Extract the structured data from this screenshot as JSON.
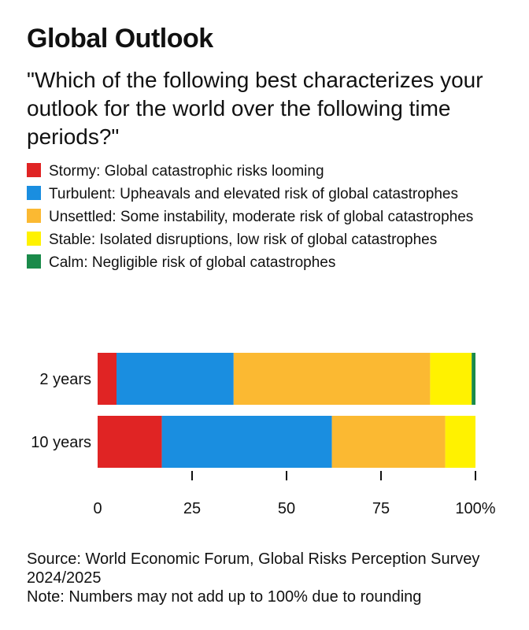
{
  "header": {
    "title": "Global Outlook",
    "subtitle": "\"Which of the following best characterizes your outlook for the world over the following time periods?\""
  },
  "legend": [
    {
      "label": "Stormy: Global catastrophic risks looming",
      "color": "#e02424"
    },
    {
      "label": "Turbulent: Upheavals and elevated risk of global catastrophes",
      "color": "#1a8ee0"
    },
    {
      "label": "Unsettled: Some instability, moderate risk of global catastrophes",
      "color": "#fbb932"
    },
    {
      "label": "Stable: Isolated disruptions, low risk of global catastrophes",
      "color": "#fff200"
    },
    {
      "label": "Calm: Negligible risk of global catastrophes",
      "color": "#1a8a4a"
    }
  ],
  "chart_data": {
    "type": "bar",
    "orientation": "horizontal",
    "stacked": true,
    "categories": [
      "2 years",
      "10 years"
    ],
    "series": [
      {
        "name": "Stormy",
        "color": "#e02424",
        "values": [
          5,
          17
        ]
      },
      {
        "name": "Turbulent",
        "color": "#1a8ee0",
        "values": [
          31,
          45
        ]
      },
      {
        "name": "Unsettled",
        "color": "#fbb932",
        "values": [
          52,
          30
        ]
      },
      {
        "name": "Stable",
        "color": "#fff200",
        "values": [
          11,
          8
        ]
      },
      {
        "name": "Calm",
        "color": "#1a8a4a",
        "values": [
          1,
          0
        ]
      }
    ],
    "xlim": [
      0,
      100
    ],
    "xticks": [
      "0",
      "25",
      "50",
      "75",
      "100%"
    ],
    "xtick_values": [
      0,
      25,
      50,
      75,
      100
    ],
    "grid": false
  },
  "footer": {
    "source": "Source: World Economic Forum, Global Risks Perception Survey 2024/2025",
    "note": "Note: Numbers may not add up to 100% due to rounding"
  }
}
